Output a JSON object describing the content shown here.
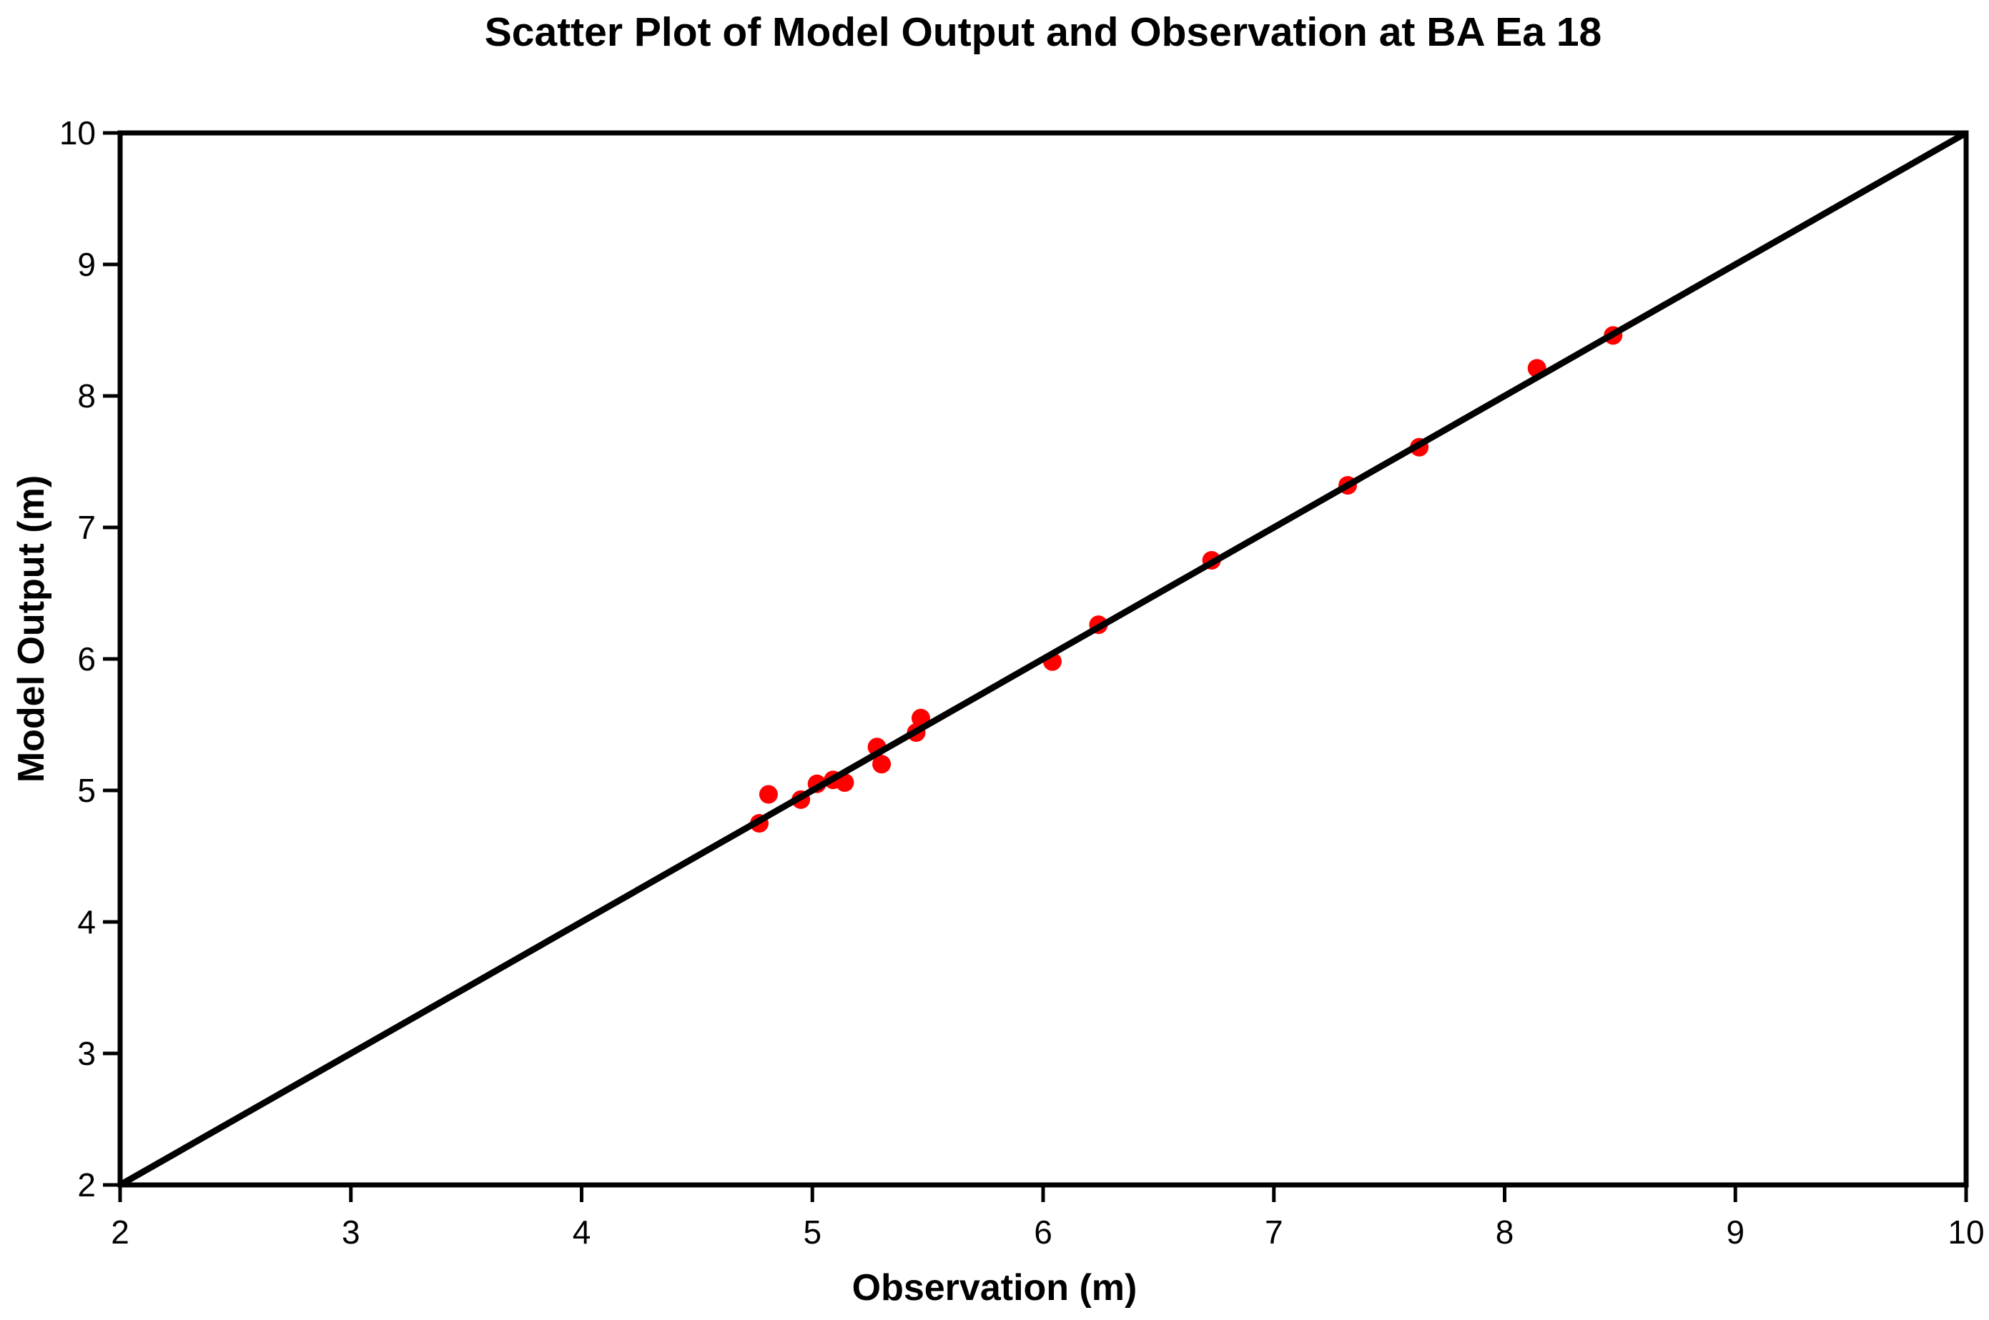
{
  "chart_data": {
    "type": "scatter",
    "title": "Scatter Plot of Model Output and Observation at BA Ea 18",
    "xlabel": "Observation (m)",
    "ylabel": "Model Output (m)",
    "xlim": [
      2,
      10
    ],
    "ylim": [
      2,
      10
    ],
    "xticks": [
      2,
      3,
      4,
      5,
      6,
      7,
      8,
      9,
      10
    ],
    "yticks": [
      2,
      3,
      4,
      5,
      6,
      7,
      8,
      9,
      10
    ],
    "grid": false,
    "legend": false,
    "frame": "full-box",
    "series": [
      {
        "marker": "circle",
        "color": "#ff0000",
        "points": [
          [
            4.77,
            4.75
          ],
          [
            4.81,
            4.97
          ],
          [
            4.95,
            4.93
          ],
          [
            5.02,
            5.05
          ],
          [
            5.09,
            5.08
          ],
          [
            5.14,
            5.06
          ],
          [
            5.28,
            5.33
          ],
          [
            5.3,
            5.2
          ],
          [
            5.45,
            5.44
          ],
          [
            5.47,
            5.55
          ],
          [
            6.04,
            5.98
          ],
          [
            6.24,
            6.26
          ],
          [
            6.73,
            6.75
          ],
          [
            7.32,
            7.32
          ],
          [
            7.63,
            7.61
          ],
          [
            8.14,
            8.21
          ],
          [
            8.47,
            8.46
          ]
        ]
      }
    ],
    "reference_line": {
      "from": [
        2,
        2
      ],
      "to": [
        10,
        10
      ],
      "color": "#000000"
    },
    "colors": {
      "background": "#ffffff",
      "axis": "#000000",
      "point": "#ff0000"
    }
  }
}
